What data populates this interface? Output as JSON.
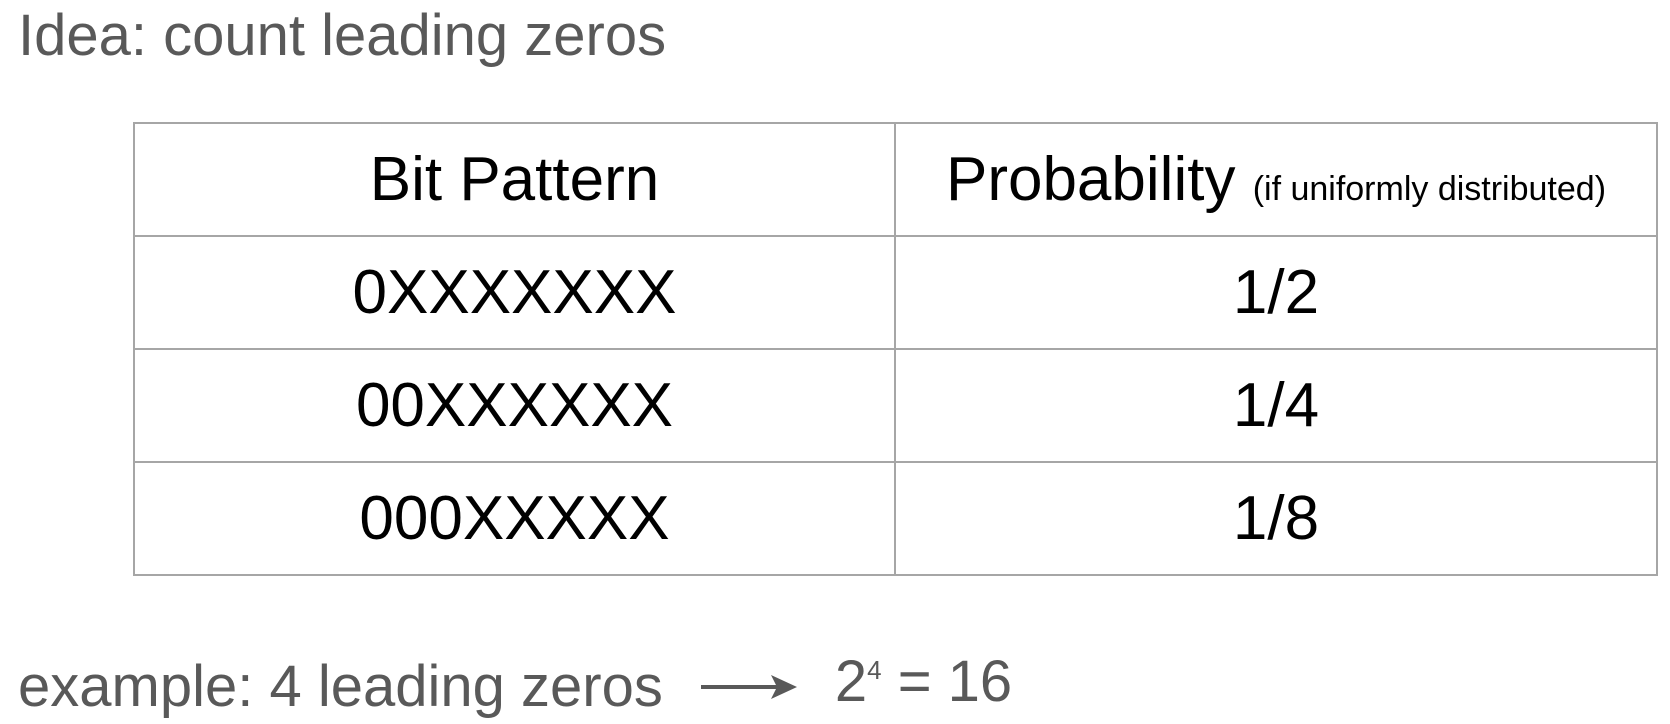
{
  "title": "Idea: count leading zeros",
  "table": {
    "headers": {
      "pattern": "Bit Pattern",
      "probability": "Probability",
      "probability_note": "(if uniformly distributed)"
    },
    "rows": [
      {
        "pattern": "0XXXXXXX",
        "probability": "1/2"
      },
      {
        "pattern": "00XXXXXX",
        "probability": "1/4"
      },
      {
        "pattern": "000XXXXX",
        "probability": "1/8"
      }
    ]
  },
  "example": {
    "label": "example: 4 leading zeros",
    "base": "2",
    "exponent": "4",
    "result": "= 16"
  },
  "colors": {
    "text_gray": "#595959",
    "table_text": "#000000",
    "table_border": "#a6a6a6"
  },
  "icons": {
    "arrow": "right-arrow-icon"
  }
}
